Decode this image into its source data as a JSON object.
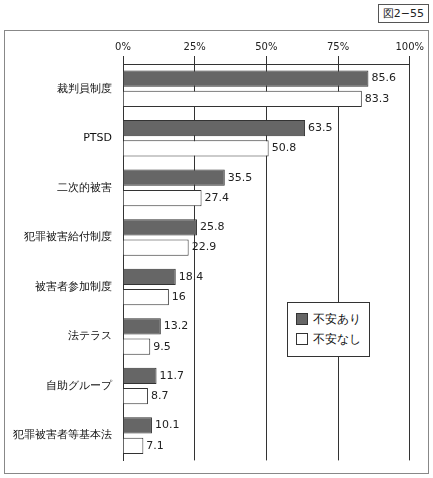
{
  "chart_data": {
    "type": "bar",
    "orientation": "horizontal",
    "title": "図2−55",
    "categories": [
      "裁判員制度",
      "PTSD",
      "二次的被害",
      "犯罪被害給付制度",
      "被害者参加制度",
      "法テラス",
      "自助グループ",
      "犯罪被害者等基本法"
    ],
    "series": [
      {
        "name": "不安あり",
        "color": "#666666",
        "values": [
          85.6,
          63.5,
          35.5,
          25.8,
          18.4,
          13.2,
          11.7,
          10.1
        ]
      },
      {
        "name": "不安なし",
        "color": "#ffffff",
        "values": [
          83.3,
          50.8,
          27.4,
          22.9,
          16,
          9.5,
          8.7,
          7.1
        ]
      }
    ],
    "xlim": [
      0,
      100
    ],
    "xticks": [
      {
        "value": 0,
        "label": "0%"
      },
      {
        "value": 25,
        "label": "25%"
      },
      {
        "value": 50,
        "label": "50%"
      },
      {
        "value": 75,
        "label": "75%"
      },
      {
        "value": 100,
        "label": "100%"
      }
    ],
    "grid": true,
    "legend": "lower right",
    "data_labels": true
  }
}
